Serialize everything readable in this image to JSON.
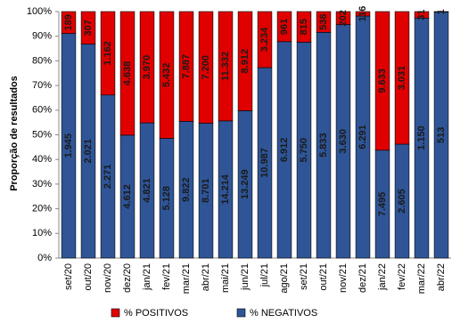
{
  "chart_data": {
    "type": "bar",
    "stacked": "percent",
    "ylabel": "Proporção de resultados",
    "categories": [
      "set/20",
      "out/20",
      "nov/20",
      "dez/20",
      "jan/21",
      "fev/21",
      "mar/21",
      "abr/21",
      "mai/21",
      "jun/21",
      "jul/21",
      "ago/21",
      "set/21",
      "out/21",
      "nov/21",
      "dez/21",
      "jan/22",
      "fev/22",
      "mar/22",
      "abr/22"
    ],
    "series": [
      {
        "name": "% POSITIVOS",
        "color": "#e00000",
        "values": [
          189,
          307,
          1162,
          4638,
          3970,
          5432,
          7887,
          7200,
          11332,
          8912,
          3234,
          961,
          815,
          536,
          202,
          116,
          9633,
          3031,
          31,
          1
        ],
        "value_labels": [
          "189",
          "307",
          "1.162",
          "4.638",
          "3.970",
          "5.432",
          "7.887",
          "7.200",
          "11.332",
          "8.912",
          "3.234",
          "961",
          "815",
          "536",
          "202",
          "116",
          "9.633",
          "3.031",
          "31",
          "1"
        ]
      },
      {
        "name": "% NEGATIVOS",
        "color": "#2f5597",
        "values": [
          1945,
          2021,
          2271,
          4612,
          4821,
          5128,
          9822,
          8701,
          14214,
          13249,
          10987,
          6912,
          5750,
          5833,
          3630,
          6291,
          7495,
          2605,
          1150,
          513
        ],
        "value_labels": [
          "1.945",
          "2.021",
          "2.271",
          "4.612",
          "4.821",
          "5.128",
          "9.822",
          "8.701",
          "14.214",
          "13.249",
          "10.987",
          "6.912",
          "5.750",
          "5.833",
          "3.630",
          "6.291",
          "7.495",
          "2.605",
          "1.150",
          "513"
        ]
      }
    ],
    "ylim": [
      0,
      100
    ],
    "yticks": [
      {
        "value": 0,
        "label": "0%"
      },
      {
        "value": 10,
        "label": "10%"
      },
      {
        "value": 20,
        "label": "20%"
      },
      {
        "value": 30,
        "label": "30%"
      },
      {
        "value": 40,
        "label": "40%"
      },
      {
        "value": 50,
        "label": "50%"
      },
      {
        "value": 60,
        "label": "60%"
      },
      {
        "value": 70,
        "label": "70%"
      },
      {
        "value": 80,
        "label": "80%"
      },
      {
        "value": 90,
        "label": "90%"
      },
      {
        "value": 100,
        "label": "100%"
      }
    ],
    "legend": "bottom"
  }
}
